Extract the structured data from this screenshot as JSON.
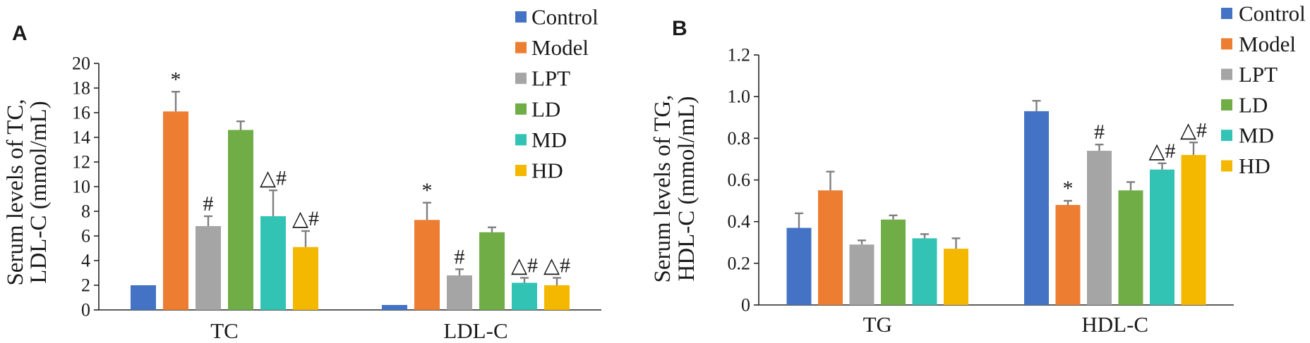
{
  "style": {
    "background": "#FFFFFF",
    "text_color": "#1A1A1A",
    "axis_color": "#262626",
    "error_bar_color": "#7F7F7F"
  },
  "chart_data": [
    {
      "panel_label": "A",
      "type": "bar",
      "categories": [
        "TC",
        "LDL-C"
      ],
      "xlabel": "",
      "ylabel": [
        "Serum levels of TC,",
        "LDL-C (mmol/mL)"
      ],
      "ylim": [
        0,
        20
      ],
      "yticks": [
        0,
        2,
        4,
        6,
        8,
        10,
        12,
        14,
        16,
        18,
        20
      ],
      "ytick_labels": [
        "0",
        "2",
        "4",
        "6",
        "8",
        "10",
        "12",
        "14",
        "16",
        "18",
        "20"
      ],
      "grid": false,
      "legend": "top-right",
      "series": [
        {
          "name": "Control",
          "color": "#4472C4",
          "values": [
            2.0,
            0.4
          ],
          "errors": [
            0,
            0
          ],
          "annotations": [
            "",
            ""
          ]
        },
        {
          "name": "Model",
          "color": "#ED7D31",
          "values": [
            16.1,
            7.3
          ],
          "errors": [
            1.6,
            1.4
          ],
          "annotations": [
            "*",
            "*"
          ]
        },
        {
          "name": "LPT",
          "color": "#A5A5A5",
          "values": [
            6.8,
            2.8
          ],
          "errors": [
            0.8,
            0.5
          ],
          "annotations": [
            "#",
            "#"
          ]
        },
        {
          "name": "LD",
          "color": "#70AD47",
          "values": [
            14.6,
            6.3
          ],
          "errors": [
            0.7,
            0.4
          ],
          "annotations": [
            "",
            ""
          ]
        },
        {
          "name": "MD",
          "color": "#33C3B5",
          "values": [
            7.6,
            2.2
          ],
          "errors": [
            2.1,
            0.4
          ],
          "annotations": [
            "△#",
            "△#"
          ]
        },
        {
          "name": "HD",
          "color": "#F5B800",
          "values": [
            5.1,
            2.0
          ],
          "errors": [
            1.3,
            0.6
          ],
          "annotations": [
            "△#",
            "△#"
          ]
        }
      ]
    },
    {
      "panel_label": "B",
      "type": "bar",
      "categories": [
        "TG",
        "HDL-C"
      ],
      "xlabel": "",
      "ylabel": [
        "Serum levels of TG,",
        "HDL-C (mmol/mL)"
      ],
      "ylim": [
        0,
        1.2
      ],
      "yticks": [
        0,
        0.2,
        0.4,
        0.6,
        0.8,
        1.0,
        1.2
      ],
      "ytick_labels": [
        "0",
        "0.2",
        "0.4",
        "0.6",
        "0.8",
        "1.0",
        "1.2"
      ],
      "grid": false,
      "legend": "top-right",
      "series": [
        {
          "name": "Control",
          "color": "#4472C4",
          "values": [
            0.37,
            0.93
          ],
          "errors": [
            0.07,
            0.05
          ],
          "annotations": [
            "",
            ""
          ]
        },
        {
          "name": "Model",
          "color": "#ED7D31",
          "values": [
            0.55,
            0.48
          ],
          "errors": [
            0.09,
            0.02
          ],
          "annotations": [
            "",
            "*"
          ]
        },
        {
          "name": "LPT",
          "color": "#A5A5A5",
          "values": [
            0.29,
            0.74
          ],
          "errors": [
            0.02,
            0.03
          ],
          "annotations": [
            "",
            "#"
          ]
        },
        {
          "name": "LD",
          "color": "#70AD47",
          "values": [
            0.41,
            0.55
          ],
          "errors": [
            0.02,
            0.04
          ],
          "annotations": [
            "",
            ""
          ]
        },
        {
          "name": "MD",
          "color": "#33C3B5",
          "values": [
            0.32,
            0.65
          ],
          "errors": [
            0.02,
            0.03
          ],
          "annotations": [
            "",
            "△#"
          ]
        },
        {
          "name": "HD",
          "color": "#F5B800",
          "values": [
            0.27,
            0.72
          ],
          "errors": [
            0.05,
            0.06
          ],
          "annotations": [
            "",
            "△#"
          ]
        }
      ]
    }
  ]
}
